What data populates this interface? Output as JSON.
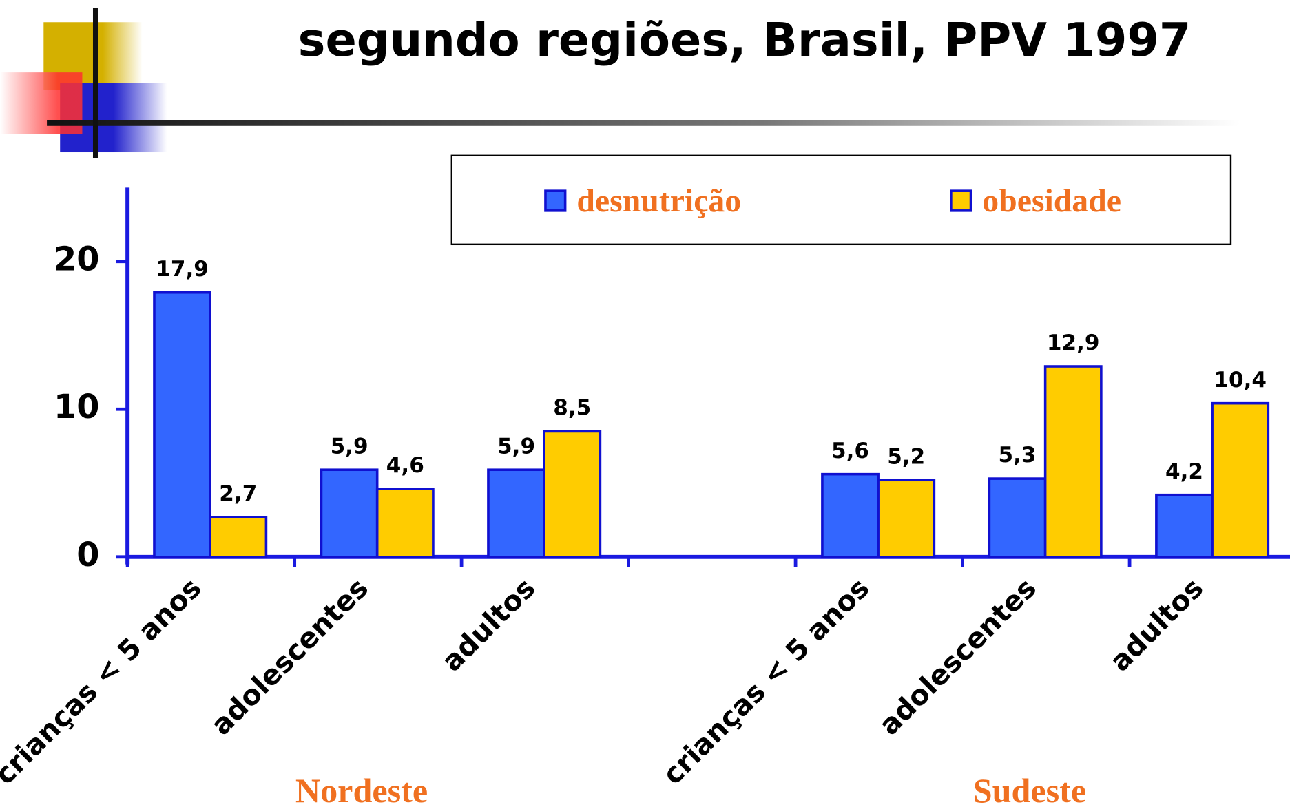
{
  "chart_data": {
    "type": "bar",
    "title": "segundo regiões, Brasil, PPV 1997",
    "categories": [
      "crianças < 5 anos",
      "adolescentes",
      "adultos",
      null,
      "crianças < 5 anos",
      "adolescentes",
      "adultos"
    ],
    "series": [
      {
        "name": "desnutrição",
        "color": "#3366ff",
        "values": [
          17.9,
          5.9,
          5.9,
          null,
          5.6,
          5.3,
          4.2
        ],
        "value_labels": [
          "17,9",
          "5,9",
          "5,9",
          null,
          "5,6",
          "5,3",
          "4,2"
        ]
      },
      {
        "name": "obesidade",
        "color": "#ffcc00",
        "values": [
          2.7,
          4.6,
          8.5,
          null,
          5.2,
          12.9,
          10.4
        ],
        "value_labels": [
          "2,7",
          "4,6",
          "8,5",
          null,
          "5,2",
          "12,9",
          "10,4"
        ]
      }
    ],
    "groups": [
      "Nordeste",
      "Sudeste"
    ],
    "ylim": [
      0,
      25
    ],
    "yticks": [
      0,
      10,
      20
    ],
    "grid": false,
    "legend": "top"
  }
}
